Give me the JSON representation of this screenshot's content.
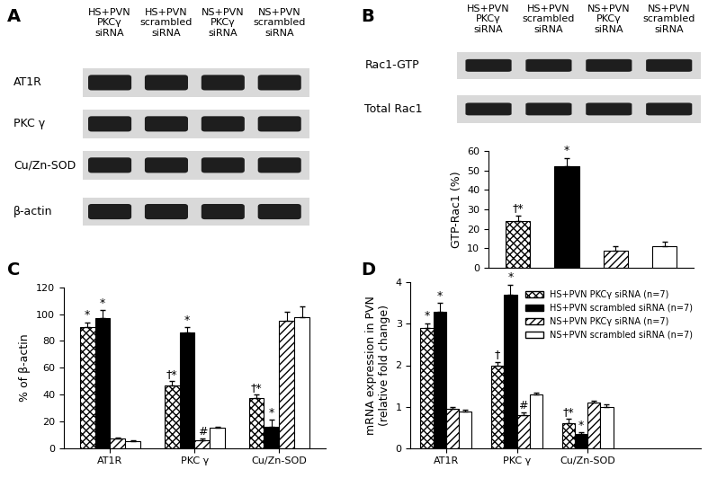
{
  "panel_labels": [
    "A",
    "B",
    "C",
    "D"
  ],
  "blots": [
    {
      "columns": [
        "HS+PVN\nPKCγ\nsiRNA",
        "HS+PVN\nscrambled\nsiRNA",
        "NS+PVN\nPKCγ\nsiRNA",
        "NS+PVN\nscrambled\nsiRNA"
      ],
      "rows": [
        "AT1R",
        "PKC γ",
        "Cu/Zn-SOD",
        "β-actin"
      ]
    },
    {
      "columns": [
        "HS+PVN\nPKCγ\nsiRNA",
        "HS+PVN\nscrambled\nsiRNA",
        "NS+PVN\nPKCγ\nsiRNA",
        "NS+PVN\nscrambled\nsiRNA"
      ],
      "rows": [
        "Rac1-GTP",
        "Total Rac1"
      ]
    }
  ],
  "chart_data": [
    {
      "type": "bar",
      "y_label": "GTP-Rac1 (%)",
      "categories": [
        null,
        null,
        null,
        null
      ],
      "values": [
        24,
        52,
        9,
        11
      ],
      "errors": [
        3,
        4.5,
        2,
        2.5
      ],
      "marks": [
        "†*",
        "*",
        null,
        null
      ],
      "colors": [
        "#ffffff",
        "#000000",
        "#ffffff",
        "#ffffff"
      ],
      "ylim": [
        0,
        60
      ],
      "yticks": [
        0,
        10,
        20,
        30,
        40,
        50,
        60
      ],
      "tick_labels": "y",
      "grid": false
    },
    {
      "type": "bar",
      "y_label": "% of β-actin",
      "categories": [
        "AT1R",
        "PKC γ",
        "Cu/Zn-SOD"
      ],
      "series": [
        {
          "color": "#ffffff",
          "values": [
            90,
            47,
            37
          ],
          "errors": [
            4,
            3,
            3
          ],
          "marks": [
            "*",
            "†*",
            "†*"
          ]
        },
        {
          "color": "#000000",
          "values": [
            97,
            86,
            16
          ],
          "errors": [
            6,
            4,
            5
          ],
          "marks": [
            "*",
            "*",
            "*"
          ]
        },
        {
          "color": "#ffffff",
          "values": [
            7,
            6,
            95
          ],
          "errors": [
            1,
            1,
            7
          ],
          "marks": [
            null,
            "#",
            null
          ]
        },
        {
          "color": "#ffffff",
          "values": [
            5,
            15,
            98
          ],
          "errors": [
            1,
            1,
            8
          ],
          "marks": [
            null,
            null,
            null
          ]
        }
      ],
      "ylim": [
        0,
        120
      ],
      "yticks": [
        0,
        20,
        40,
        60,
        80,
        100,
        120
      ],
      "grid": false
    },
    {
      "type": "bar",
      "y_label": "mRNA expression in PVN\n(relative fold change)",
      "categories": [
        "AT1R",
        "PKC γ",
        "Cu/Zn-SOD"
      ],
      "series": [
        {
          "name": "HS+PVN PKCγ siRNA (n=7)",
          "color": "#ffffff",
          "values": [
            2.9,
            2.0,
            0.6
          ],
          "errors": [
            0.12,
            0.08,
            0.1
          ],
          "marks": [
            "*",
            "†",
            "†*"
          ]
        },
        {
          "name": "HS+PVN scrambled siRNA (n=7)",
          "color": "#000000",
          "values": [
            3.3,
            3.7,
            0.35
          ],
          "errors": [
            0.2,
            0.25,
            0.03
          ],
          "marks": [
            "*",
            "*",
            "*"
          ]
        },
        {
          "name": "NS+PVN PKCγ siRNA (n=7)",
          "color": "#ffffff",
          "values": [
            0.95,
            0.8,
            1.1
          ],
          "errors": [
            0.05,
            0.05,
            0.05
          ],
          "marks": [
            null,
            "#",
            null
          ]
        },
        {
          "name": "NS+PVN scrambled siRNA (n=7)",
          "color": "#ffffff",
          "values": [
            0.88,
            1.3,
            1.0
          ],
          "errors": [
            0.05,
            0.03,
            0.05
          ],
          "marks": [
            null,
            null,
            null
          ]
        }
      ],
      "ylim": [
        0,
        4
      ],
      "yticks": [
        0,
        1,
        2,
        3,
        4
      ],
      "legend": "upper right",
      "grid": false
    }
  ]
}
